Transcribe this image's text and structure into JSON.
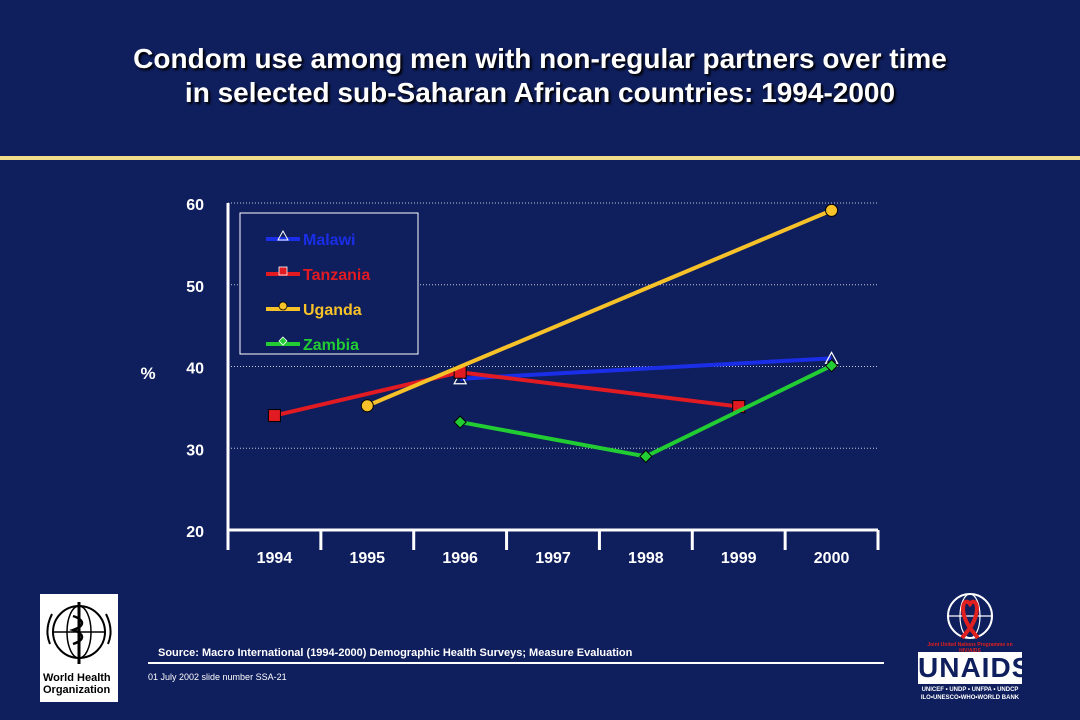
{
  "slide": {
    "title_line1": "Condom use among men with non-regular partners over time",
    "title_line2": "in selected sub-Saharan African countries:  1994-2000",
    "source": "Source:  Macro International (1994-2000)  Demographic Health Surveys;  Measure Evaluation",
    "footer": "01 July 2002 slide number SSA-21",
    "who_logo_text": "World Health Organization",
    "unaids_logo_text": "UNAIDS",
    "unaids_tagline": "Joint United Nations Programme on HIV/AIDS",
    "unaids_sponsors": "UNICEF • UNDP • UNFPA • UNDCP ILO•UNESCO•WHO•WORLD BANK",
    "colors": {
      "background": "#0f1e5c",
      "rule": "#f1dc8a",
      "text": "#ffffff"
    }
  },
  "chart_data": {
    "type": "line",
    "title": "",
    "xlabel": "",
    "ylabel": "%",
    "categories": [
      "1994",
      "1995",
      "1996",
      "1997",
      "1998",
      "1999",
      "2000"
    ],
    "yticks": [
      20,
      30,
      40,
      50,
      60
    ],
    "ylim": [
      20,
      60
    ],
    "grid": "horizontal dotted",
    "legend_position": "top-left",
    "series": [
      {
        "name": "Malawi",
        "color": "#1a2ee8",
        "marker": "triangle",
        "points": [
          [
            "1996",
            38.5
          ],
          [
            "2000",
            41
          ]
        ]
      },
      {
        "name": "Tanzania",
        "color": "#e21b23",
        "marker": "square",
        "points": [
          [
            "1994",
            34
          ],
          [
            "1996",
            39.3
          ],
          [
            "1999",
            35.1
          ]
        ]
      },
      {
        "name": "Uganda",
        "color": "#f7c229",
        "marker": "circle",
        "points": [
          [
            "1995",
            35.2
          ],
          [
            "2000",
            59.1
          ]
        ]
      },
      {
        "name": "Zambia",
        "color": "#22cc33",
        "marker": "diamond",
        "points": [
          [
            "1996",
            33.2
          ],
          [
            "1998",
            29
          ],
          [
            "2000",
            40.1
          ]
        ]
      }
    ]
  }
}
